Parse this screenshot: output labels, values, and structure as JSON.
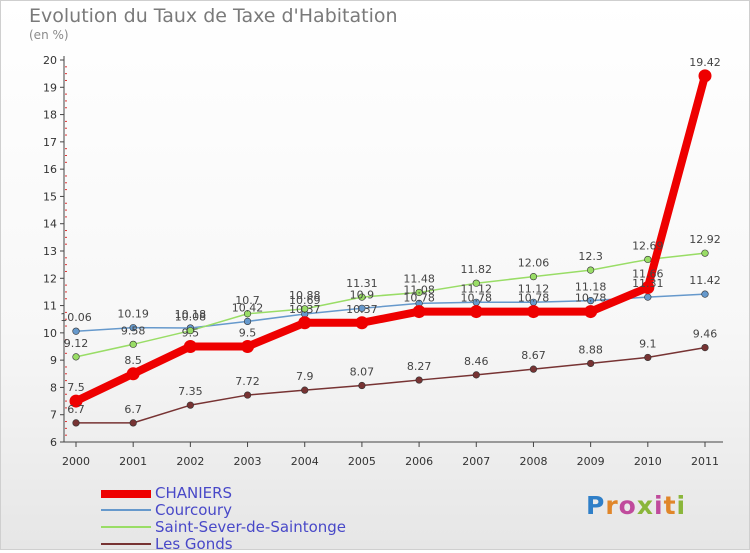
{
  "title": "Evolution du Taux de Taxe d'Habitation",
  "subtitle": "(en %)",
  "logo": "Proxiti",
  "chart_data": {
    "type": "line",
    "title": "Evolution du Taux de Taxe d'Habitation",
    "subtitle": "(en %)",
    "x": [
      "2000",
      "2001",
      "2002",
      "2003",
      "2004",
      "2005",
      "2006",
      "2007",
      "2008",
      "2009",
      "2010",
      "2011"
    ],
    "ylim": [
      6,
      20
    ],
    "yticks": [
      "6",
      "7",
      "8",
      "9",
      "10",
      "11",
      "12",
      "13",
      "14",
      "15",
      "16",
      "17",
      "18",
      "19",
      "20"
    ],
    "grid": false,
    "legend": "bottom-left",
    "series": [
      {
        "name": "CHANIERS",
        "color": "#ee0000",
        "values": [
          7.5,
          8.5,
          9.5,
          9.5,
          10.37,
          10.37,
          10.78,
          10.78,
          10.78,
          10.78,
          11.66,
          19.42
        ],
        "labels": [
          "7.5",
          "8.5",
          "9.5",
          "9.5",
          "10.37",
          "10.37",
          "10.78",
          "10.78",
          "10.78",
          "10.78",
          "11.66",
          "19.42"
        ]
      },
      {
        "name": "Courcoury",
        "color": "#6699cc",
        "values": [
          10.06,
          10.19,
          10.18,
          10.42,
          10.69,
          10.9,
          11.08,
          11.12,
          11.12,
          11.18,
          11.31,
          11.42
        ],
        "labels": [
          "10.06",
          "10.19",
          "10.18",
          "10.42",
          "10.69",
          "10.9",
          "11.08",
          "11.12",
          "11.12",
          "11.18",
          "11.31",
          "11.42"
        ]
      },
      {
        "name": "Saint-Sever-de-Saintonge",
        "color": "#99dd66",
        "values": [
          9.12,
          9.58,
          10.08,
          10.7,
          10.88,
          11.31,
          11.48,
          11.82,
          12.06,
          12.3,
          12.69,
          12.92
        ],
        "labels": [
          "9.12",
          "9.58",
          "10.08",
          "10.7",
          "10.88",
          "11.31",
          "11.48",
          "11.82",
          "12.06",
          "12.3",
          "12.69",
          "12.92"
        ]
      },
      {
        "name": "Les Gonds",
        "color": "#773333",
        "values": [
          6.7,
          6.7,
          7.35,
          7.72,
          7.9,
          8.07,
          8.27,
          8.46,
          8.67,
          8.88,
          9.1,
          9.46
        ],
        "labels": [
          "6.7",
          "6.7",
          "7.35",
          "7.72",
          "7.9",
          "8.07",
          "8.27",
          "8.46",
          "8.67",
          "8.88",
          "9.1",
          "9.46"
        ]
      }
    ]
  }
}
